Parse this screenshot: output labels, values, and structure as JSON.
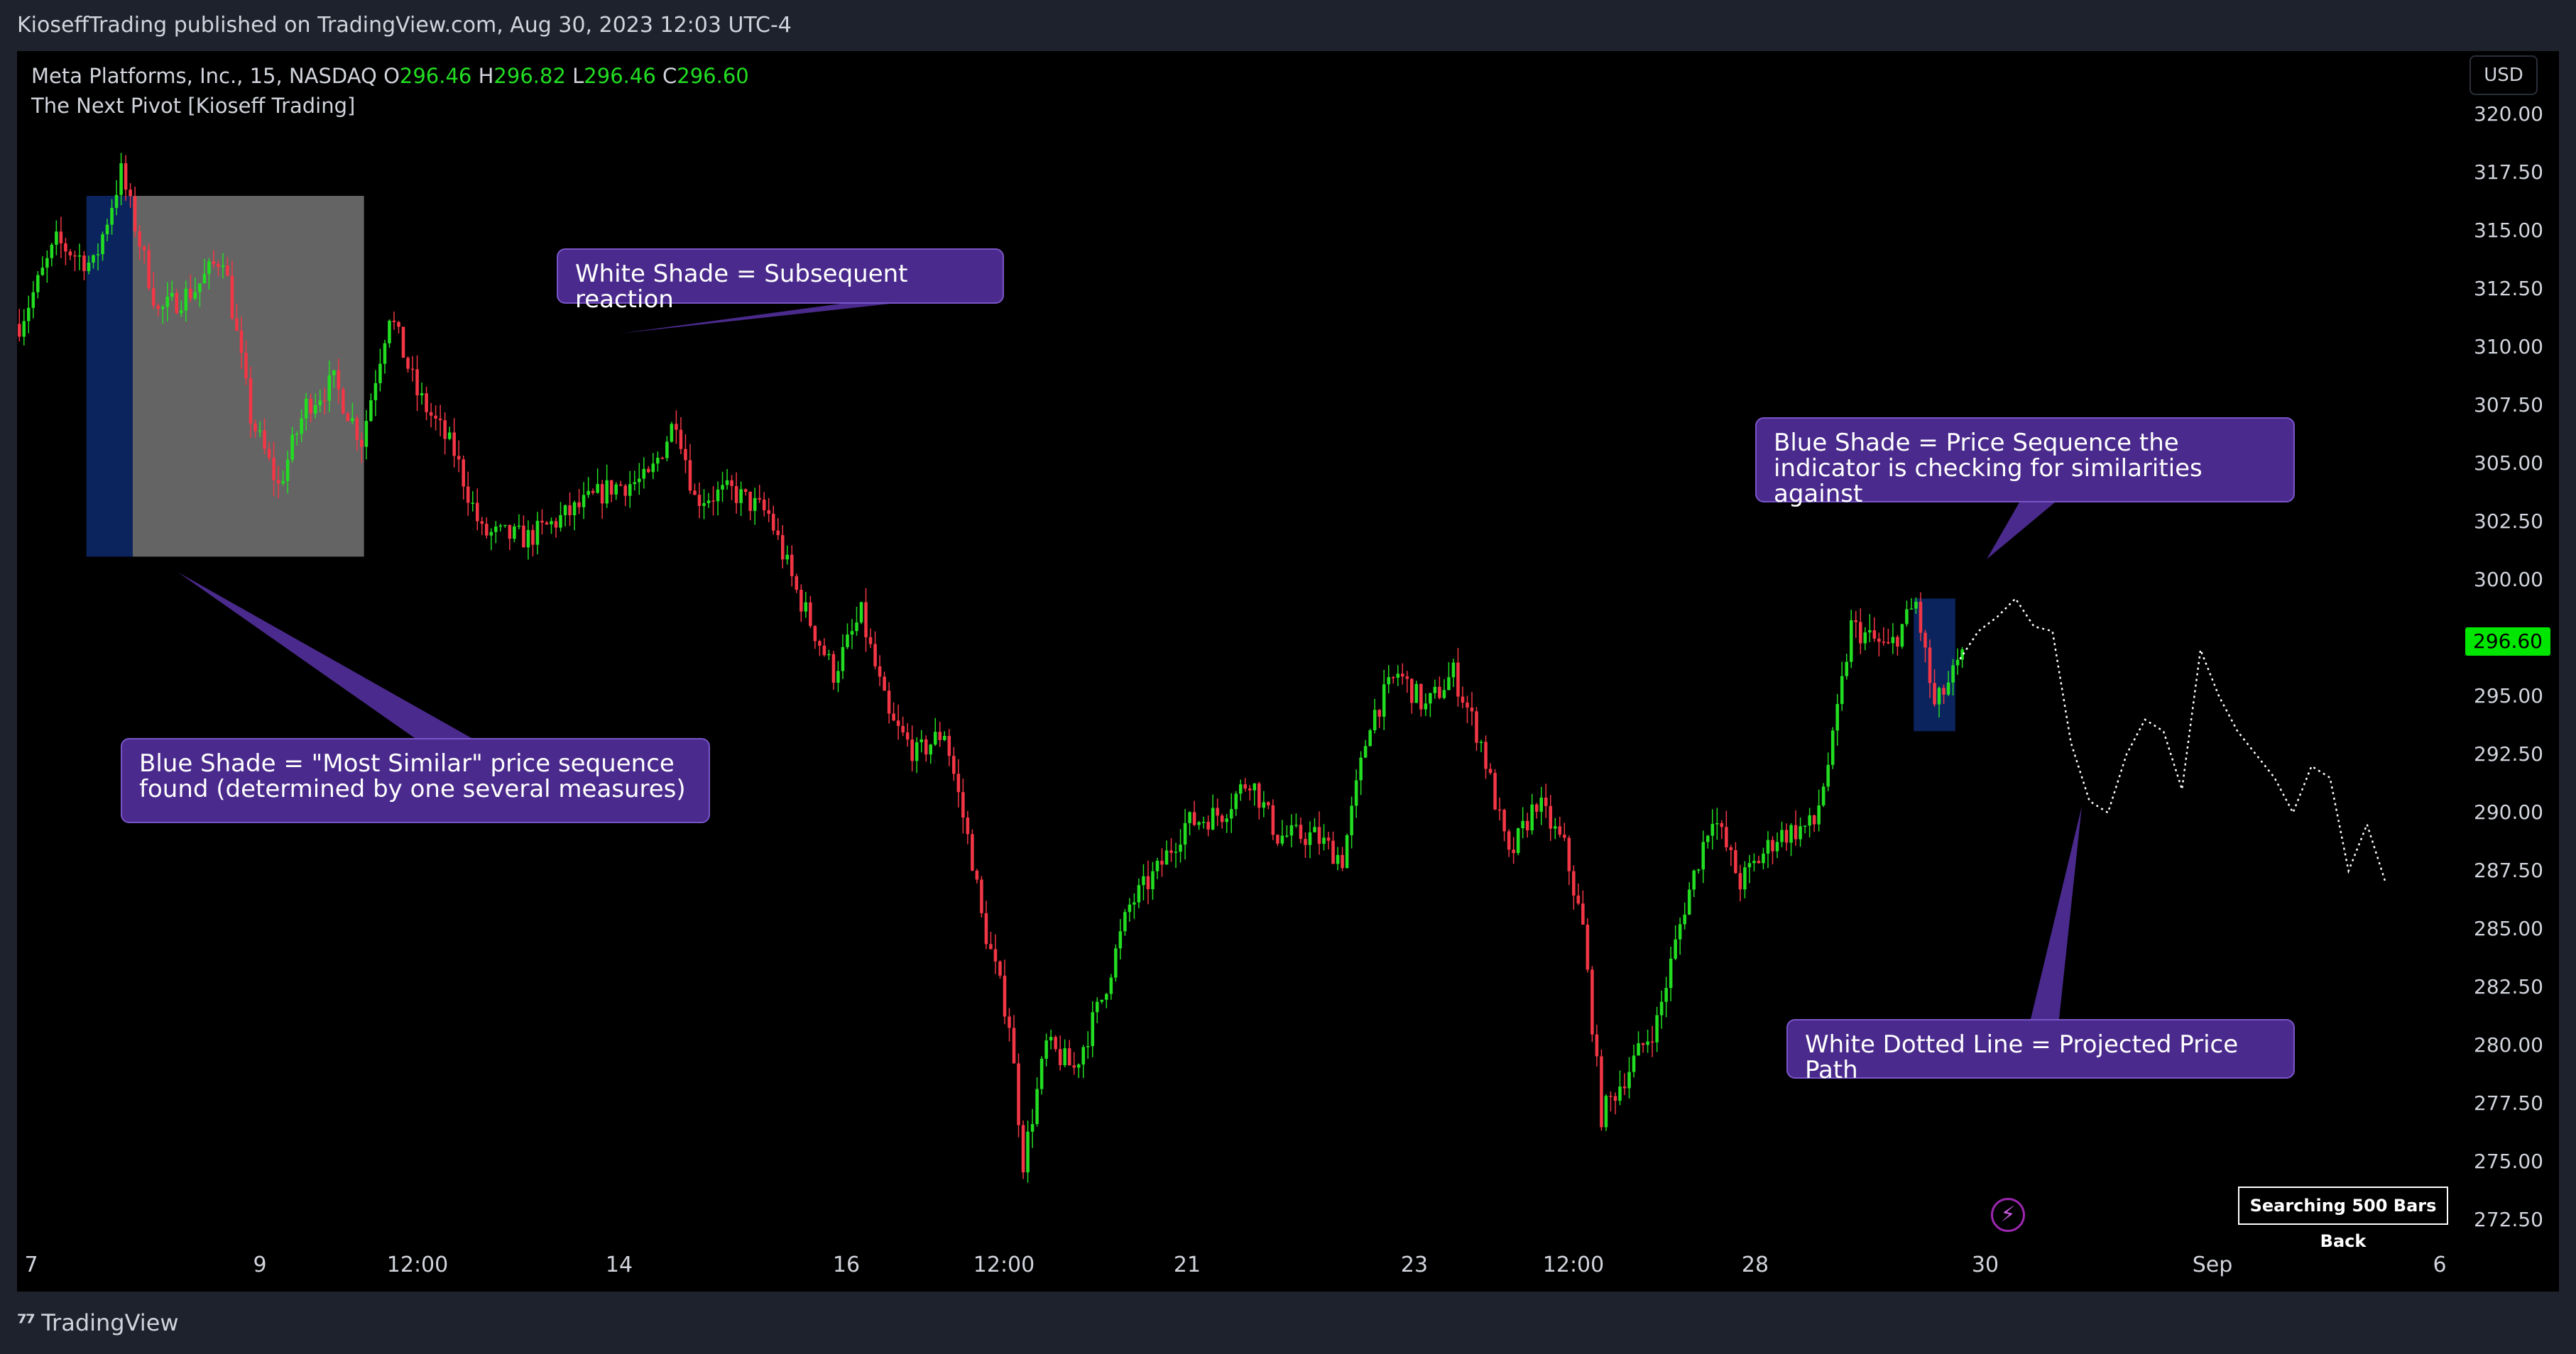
{
  "header": {
    "published_text": "KioseffTrading published on TradingView.com, Aug 30, 2023 12:03 UTC-4"
  },
  "legend": {
    "symbol": "Meta Platforms, Inc., 15, NASDAQ",
    "open_label": "O",
    "open": "296.46",
    "high_label": "H",
    "high": "296.82",
    "low_label": "L",
    "low": "296.46",
    "close_label": "C",
    "close": "296.60",
    "indicator": "The Next Pivot [Kioseff Trading]"
  },
  "toolbar": {
    "currency": "USD"
  },
  "annotations": {
    "white_shade": "White Shade = Subsequent reaction",
    "blue_shade_right": "Blue Shade = Price Sequence the indicator is checking for similarities against",
    "blue_shade_left": "Blue Shade = \"Most Similar\" price sequence found (determined by one several measures)",
    "dotted_line": "White Dotted Line = Projected Price Path",
    "search_label": "Searching 500 Bars Back"
  },
  "footer": {
    "brand": "TradingView"
  },
  "colors": {
    "up": "#22dd22",
    "down": "#f23645",
    "callout_bg": "#4a2a8c",
    "price_tag": "#00e600",
    "blue_shade": "#0d2a6e",
    "white_shade": "#6f6f6f"
  },
  "chart_data": {
    "type": "candlestick",
    "title": "",
    "x_tick_labels": [
      "7",
      "9",
      "12:00",
      "14",
      "16",
      "12:00",
      "21",
      "23",
      "12:00",
      "28",
      "30",
      "Sep",
      "6"
    ],
    "y_ticks": [
      "320.00",
      "317.50",
      "315.00",
      "312.50",
      "310.00",
      "307.50",
      "305.00",
      "302.50",
      "300.00",
      "297.50",
      "295.00",
      "292.50",
      "290.00",
      "287.50",
      "285.00",
      "282.50",
      "280.00",
      "277.50",
      "275.00",
      "272.50"
    ],
    "ylim": [
      271.5,
      321.5
    ],
    "last_price": "296.60",
    "price_path": [
      {
        "bar": 0,
        "price": 311
      },
      {
        "bar": 8,
        "price": 314.5
      },
      {
        "bar": 16,
        "price": 313.5
      },
      {
        "bar": 22,
        "price": 317.5
      },
      {
        "bar": 30,
        "price": 311.5
      },
      {
        "bar": 38,
        "price": 312.5
      },
      {
        "bar": 44,
        "price": 314
      },
      {
        "bar": 50,
        "price": 307
      },
      {
        "bar": 56,
        "price": 304
      },
      {
        "bar": 62,
        "price": 307.5
      },
      {
        "bar": 68,
        "price": 308.5
      },
      {
        "bar": 74,
        "price": 306
      },
      {
        "bar": 80,
        "price": 311.5
      },
      {
        "bar": 86,
        "price": 308
      },
      {
        "bar": 94,
        "price": 305.5
      },
      {
        "bar": 100,
        "price": 302
      },
      {
        "bar": 110,
        "price": 301.8
      },
      {
        "bar": 120,
        "price": 303
      },
      {
        "bar": 128,
        "price": 304
      },
      {
        "bar": 136,
        "price": 304.3
      },
      {
        "bar": 142,
        "price": 307
      },
      {
        "bar": 146,
        "price": 303.5
      },
      {
        "bar": 154,
        "price": 303.8
      },
      {
        "bar": 162,
        "price": 302.8
      },
      {
        "bar": 168,
        "price": 299.5
      },
      {
        "bar": 176,
        "price": 296
      },
      {
        "bar": 182,
        "price": 298.5
      },
      {
        "bar": 188,
        "price": 294
      },
      {
        "bar": 194,
        "price": 292.5
      },
      {
        "bar": 200,
        "price": 293.5
      },
      {
        "bar": 206,
        "price": 288
      },
      {
        "bar": 208,
        "price": 285.5
      },
      {
        "bar": 214,
        "price": 281
      },
      {
        "bar": 217,
        "price": 275
      },
      {
        "bar": 222,
        "price": 280
      },
      {
        "bar": 228,
        "price": 279
      },
      {
        "bar": 234,
        "price": 282
      },
      {
        "bar": 240,
        "price": 286
      },
      {
        "bar": 246,
        "price": 287.5
      },
      {
        "bar": 252,
        "price": 289.5
      },
      {
        "bar": 260,
        "price": 290
      },
      {
        "bar": 266,
        "price": 291.5
      },
      {
        "bar": 272,
        "price": 289
      },
      {
        "bar": 280,
        "price": 289
      },
      {
        "bar": 286,
        "price": 288
      },
      {
        "bar": 292,
        "price": 294
      },
      {
        "bar": 298,
        "price": 296
      },
      {
        "bar": 304,
        "price": 294.5
      },
      {
        "bar": 310,
        "price": 296
      },
      {
        "bar": 316,
        "price": 293
      },
      {
        "bar": 322,
        "price": 288
      },
      {
        "bar": 328,
        "price": 290.5
      },
      {
        "bar": 334,
        "price": 288.5
      },
      {
        "bar": 338,
        "price": 285
      },
      {
        "bar": 342,
        "price": 277
      },
      {
        "bar": 348,
        "price": 279
      },
      {
        "bar": 354,
        "price": 281
      },
      {
        "bar": 360,
        "price": 286
      },
      {
        "bar": 366,
        "price": 290
      },
      {
        "bar": 372,
        "price": 287
      },
      {
        "bar": 380,
        "price": 289
      },
      {
        "bar": 388,
        "price": 289.5
      },
      {
        "bar": 392,
        "price": 293
      },
      {
        "bar": 396,
        "price": 298
      },
      {
        "bar": 404,
        "price": 297
      },
      {
        "bar": 410,
        "price": 299
      },
      {
        "bar": 414,
        "price": 294.5
      },
      {
        "bar": 420,
        "price": 296.6
      }
    ],
    "shaded_regions": [
      {
        "kind": "blue",
        "from_bar": 15,
        "to_bar": 25,
        "price_low": 301,
        "price_high": 316.5
      },
      {
        "kind": "white",
        "from_bar": 25,
        "to_bar": 75,
        "price_low": 301,
        "price_high": 316.5
      },
      {
        "kind": "blue",
        "from_bar": 410,
        "to_bar": 419,
        "price_low": 293.5,
        "price_high": 299.2
      }
    ],
    "projected_path": [
      {
        "bar": 420,
        "price": 296.6
      },
      {
        "bar": 424,
        "price": 297.8
      },
      {
        "bar": 428,
        "price": 298.4
      },
      {
        "bar": 432,
        "price": 299.2
      },
      {
        "bar": 436,
        "price": 298
      },
      {
        "bar": 440,
        "price": 297.8
      },
      {
        "bar": 444,
        "price": 293
      },
      {
        "bar": 448,
        "price": 290.5
      },
      {
        "bar": 452,
        "price": 290
      },
      {
        "bar": 456,
        "price": 292.5
      },
      {
        "bar": 460,
        "price": 294
      },
      {
        "bar": 464,
        "price": 293.5
      },
      {
        "bar": 468,
        "price": 291
      },
      {
        "bar": 472,
        "price": 297
      },
      {
        "bar": 476,
        "price": 295
      },
      {
        "bar": 480,
        "price": 293.5
      },
      {
        "bar": 484,
        "price": 292.5
      },
      {
        "bar": 488,
        "price": 291.5
      },
      {
        "bar": 492,
        "price": 290
      },
      {
        "bar": 496,
        "price": 292
      },
      {
        "bar": 500,
        "price": 291.5
      },
      {
        "bar": 504,
        "price": 287.5
      },
      {
        "bar": 508,
        "price": 289.5
      },
      {
        "bar": 512,
        "price": 287
      }
    ],
    "bar_range": [
      0,
      528
    ],
    "grid": false
  }
}
